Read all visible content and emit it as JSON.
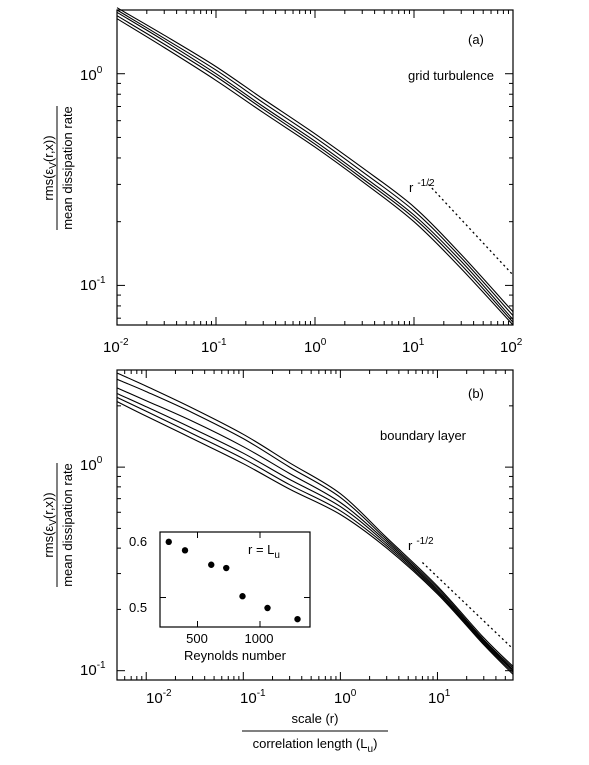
{
  "figure": {
    "ylabel_numerator": "rms(ε",
    "ylabel_numerator_sub": "V",
    "ylabel_numerator_rest": "(r,x))",
    "ylabel_denominator": "mean dissipation rate",
    "xlabel_numerator": "scale (r)",
    "xlabel_denominator_main": "correlation length (L",
    "xlabel_denominator_sub": "u",
    "xlabel_denominator_end": ")"
  },
  "chart_data": [
    {
      "type": "line",
      "panel": "(a)",
      "annotation": "grid turbulence",
      "slope_label": "r",
      "slope_exp": "-1/2",
      "xscale": "log",
      "yscale": "log",
      "xlim": [
        0.01,
        100
      ],
      "ylim": [
        0.065,
        2.0
      ],
      "x_ticks": [
        {
          "base": "10",
          "exp": "-2"
        },
        {
          "base": "10",
          "exp": "-1"
        },
        {
          "base": "10",
          "exp": "0"
        },
        {
          "base": "10",
          "exp": "1"
        },
        {
          "base": "10",
          "exp": "2"
        }
      ],
      "y_ticks": [
        {
          "base": "10",
          "exp": "0"
        },
        {
          "base": "10",
          "exp": "-1"
        }
      ],
      "series": [
        {
          "x": [
            0.01,
            0.03,
            0.1,
            0.3,
            1,
            3,
            10,
            30,
            100
          ],
          "y": [
            2.05,
            1.52,
            1.08,
            0.76,
            0.52,
            0.36,
            0.235,
            0.14,
            0.075
          ]
        },
        {
          "x": [
            0.01,
            0.03,
            0.1,
            0.3,
            1,
            3,
            10,
            30,
            100
          ],
          "y": [
            2.0,
            1.47,
            1.04,
            0.73,
            0.5,
            0.345,
            0.225,
            0.135,
            0.072
          ]
        },
        {
          "x": [
            0.01,
            0.03,
            0.1,
            0.3,
            1,
            3,
            10,
            30,
            100
          ],
          "y": [
            1.95,
            1.43,
            1.0,
            0.7,
            0.48,
            0.33,
            0.215,
            0.13,
            0.069
          ]
        },
        {
          "x": [
            0.01,
            0.03,
            0.1,
            0.3,
            1,
            3,
            10,
            30,
            100
          ],
          "y": [
            1.88,
            1.38,
            0.97,
            0.68,
            0.465,
            0.32,
            0.208,
            0.125,
            0.067
          ]
        },
        {
          "x": [
            0.01,
            0.03,
            0.1,
            0.3,
            1,
            3,
            10,
            30,
            100
          ],
          "y": [
            1.82,
            1.33,
            0.93,
            0.655,
            0.45,
            0.31,
            0.2,
            0.12,
            0.065
          ]
        }
      ],
      "reference_line": {
        "x": [
          14,
          100
        ],
        "y": [
          0.3,
          0.112
        ]
      }
    },
    {
      "type": "line",
      "panel": "(b)",
      "annotation": "boundary layer",
      "slope_label": "r",
      "slope_exp": "-1/2",
      "xscale": "log",
      "yscale": "log",
      "xlim": [
        0.005,
        60
      ],
      "ylim": [
        0.09,
        3.0
      ],
      "x_ticks": [
        {
          "base": "10",
          "exp": "-2"
        },
        {
          "base": "10",
          "exp": "-1"
        },
        {
          "base": "10",
          "exp": "0"
        },
        {
          "base": "10",
          "exp": "1"
        }
      ],
      "y_ticks": [
        {
          "base": "10",
          "exp": "0"
        },
        {
          "base": "10",
          "exp": "-1"
        }
      ],
      "series": [
        {
          "x": [
            0.005,
            0.01,
            0.03,
            0.1,
            0.3,
            1,
            3,
            10,
            30,
            60
          ],
          "y": [
            2.9,
            2.5,
            1.95,
            1.45,
            1.05,
            0.74,
            0.45,
            0.26,
            0.145,
            0.105
          ]
        },
        {
          "x": [
            0.005,
            0.01,
            0.03,
            0.1,
            0.3,
            1,
            3,
            10,
            30,
            60
          ],
          "y": [
            2.7,
            2.35,
            1.85,
            1.38,
            1.0,
            0.71,
            0.44,
            0.255,
            0.142,
            0.103
          ]
        },
        {
          "x": [
            0.005,
            0.01,
            0.03,
            0.1,
            0.3,
            1,
            3,
            10,
            30,
            60
          ],
          "y": [
            2.45,
            2.12,
            1.68,
            1.26,
            0.93,
            0.67,
            0.43,
            0.25,
            0.14,
            0.101
          ]
        },
        {
          "x": [
            0.005,
            0.01,
            0.03,
            0.1,
            0.3,
            1,
            3,
            10,
            30,
            60
          ],
          "y": [
            2.3,
            1.98,
            1.55,
            1.17,
            0.87,
            0.64,
            0.42,
            0.246,
            0.138,
            0.1
          ]
        },
        {
          "x": [
            0.005,
            0.01,
            0.03,
            0.1,
            0.3,
            1,
            3,
            10,
            30,
            60
          ],
          "y": [
            2.2,
            1.88,
            1.46,
            1.1,
            0.82,
            0.61,
            0.41,
            0.242,
            0.136,
            0.098
          ]
        },
        {
          "x": [
            0.005,
            0.01,
            0.03,
            0.1,
            0.3,
            1,
            3,
            10,
            30,
            60
          ],
          "y": [
            2.1,
            1.78,
            1.38,
            1.04,
            0.78,
            0.585,
            0.4,
            0.238,
            0.134,
            0.096
          ]
        }
      ],
      "reference_line": {
        "x": [
          7,
          60
        ],
        "y": [
          0.34,
          0.128
        ]
      }
    },
    {
      "type": "scatter",
      "panel": "inset",
      "annotation_main": "r = L",
      "annotation_sub": "u",
      "xlabel": "Reynolds number",
      "xlim": [
        200,
        1400
      ],
      "ylim": [
        0.455,
        0.6
      ],
      "x_ticks": [
        "500",
        "1000"
      ],
      "x_tick_values": [
        500,
        1000
      ],
      "y_ticks": [
        "0.6",
        "0.5"
      ],
      "y_tick_values": [
        0.6,
        0.5
      ],
      "points": [
        {
          "x": 270,
          "y": 0.585
        },
        {
          "x": 400,
          "y": 0.572
        },
        {
          "x": 610,
          "y": 0.55
        },
        {
          "x": 730,
          "y": 0.545
        },
        {
          "x": 860,
          "y": 0.502
        },
        {
          "x": 1060,
          "y": 0.484
        },
        {
          "x": 1300,
          "y": 0.467
        }
      ]
    }
  ]
}
